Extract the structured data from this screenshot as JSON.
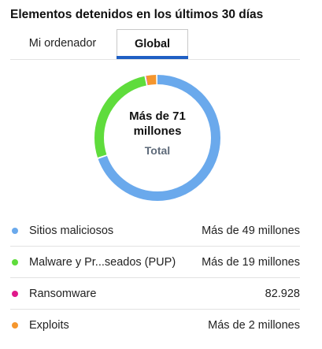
{
  "header": {
    "title": "Elementos detenidos en los últimos 30 días"
  },
  "tabs": [
    {
      "label": "Mi ordenador",
      "active": false
    },
    {
      "label": "Global",
      "active": true
    }
  ],
  "summary": {
    "total_value": "Más de 71 millones",
    "total_label": "Total"
  },
  "chart_data": {
    "type": "pie",
    "style": "donut",
    "total_label": "Total",
    "total_value": "Más de 71 millones",
    "categories": [
      "Sitios maliciosos",
      "Malware y Pr...seados (PUP)",
      "Ransomware",
      "Exploits"
    ],
    "values": [
      49000000,
      19000000,
      82928,
      2000000
    ],
    "colors": [
      "#6aa9ec",
      "#5fdc3c",
      "#e0198b",
      "#f5962e"
    ]
  },
  "legend": [
    {
      "label": "Sitios maliciosos",
      "value": "Más de 49 millones",
      "color": "#6aa9ec"
    },
    {
      "label": "Malware y Pr...seados (PUP)",
      "value": "Más de 19 millones",
      "color": "#5fdc3c"
    },
    {
      "label": "Ransomware",
      "value": "82.928",
      "color": "#e0198b"
    },
    {
      "label": "Exploits",
      "value": "Más de 2 millones",
      "color": "#f5962e"
    }
  ]
}
